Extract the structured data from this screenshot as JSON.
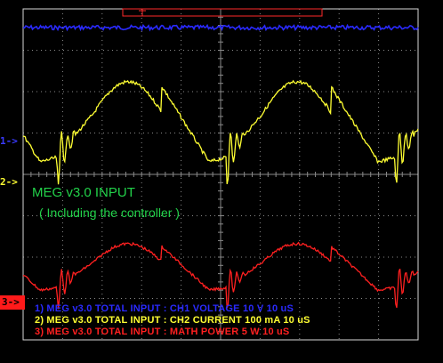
{
  "screen": {
    "background": "#000000",
    "grid_color": "#8a8a8a",
    "frame_color": "#d8d8d8",
    "trigger_color": "#ff2a2a"
  },
  "overlay": {
    "title": "MEG v3.0 INPUT",
    "subtitle": "( Including the controller )",
    "color": "#22d24a"
  },
  "channels": [
    {
      "id": "ch1",
      "marker": "1->",
      "legend": "1) MEG v3.0 TOTAL INPUT : CH1 VOLTAGE 10  V 10 uS",
      "color": "#2a2aff"
    },
    {
      "id": "ch2",
      "marker": "2->",
      "legend": "2) MEG v3.0 TOTAL INPUT : CH2 CURRENT 100 mA 10 uS",
      "color": "#ffff33"
    },
    {
      "id": "ch3",
      "marker": "3->",
      "legend": "3) MEG v3.0 TOTAL INPUT : MATH POWER 5  W 10 uS",
      "color": "#ff2020"
    }
  ]
}
